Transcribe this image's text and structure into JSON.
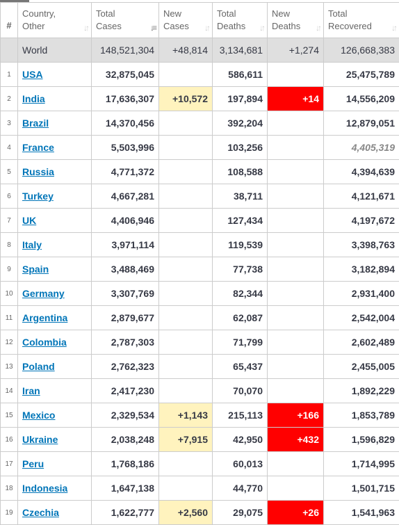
{
  "headers": {
    "num": "#",
    "country": "Country,\nOther",
    "total_cases": "Total\nCases",
    "new_cases": "New\nCases",
    "total_deaths": "Total\nDeaths",
    "new_deaths": "New\nDeaths",
    "total_recovered": "Total\nRecovered"
  },
  "world": {
    "name": "World",
    "total_cases": "148,521,304",
    "new_cases": "+48,814",
    "total_deaths": "3,134,681",
    "new_deaths": "+1,274",
    "total_recovered": "126,668,383"
  },
  "rows": [
    {
      "num": "1",
      "country": "USA",
      "total_cases": "32,875,045",
      "new_cases": "",
      "total_deaths": "586,611",
      "new_deaths": "",
      "total_recovered": "25,475,789"
    },
    {
      "num": "2",
      "country": "India",
      "total_cases": "17,636,307",
      "new_cases": "+10,572",
      "total_deaths": "197,894",
      "new_deaths": "+14",
      "total_recovered": "14,556,209"
    },
    {
      "num": "3",
      "country": "Brazil",
      "total_cases": "14,370,456",
      "new_cases": "",
      "total_deaths": "392,204",
      "new_deaths": "",
      "total_recovered": "12,879,051"
    },
    {
      "num": "4",
      "country": "France",
      "total_cases": "5,503,996",
      "new_cases": "",
      "total_deaths": "103,256",
      "new_deaths": "",
      "total_recovered": "4,405,319",
      "recovered_estimated": true
    },
    {
      "num": "5",
      "country": "Russia",
      "total_cases": "4,771,372",
      "new_cases": "",
      "total_deaths": "108,588",
      "new_deaths": "",
      "total_recovered": "4,394,639"
    },
    {
      "num": "6",
      "country": "Turkey",
      "total_cases": "4,667,281",
      "new_cases": "",
      "total_deaths": "38,711",
      "new_deaths": "",
      "total_recovered": "4,121,671"
    },
    {
      "num": "7",
      "country": "UK",
      "total_cases": "4,406,946",
      "new_cases": "",
      "total_deaths": "127,434",
      "new_deaths": "",
      "total_recovered": "4,197,672"
    },
    {
      "num": "8",
      "country": "Italy",
      "total_cases": "3,971,114",
      "new_cases": "",
      "total_deaths": "119,539",
      "new_deaths": "",
      "total_recovered": "3,398,763"
    },
    {
      "num": "9",
      "country": "Spain",
      "total_cases": "3,488,469",
      "new_cases": "",
      "total_deaths": "77,738",
      "new_deaths": "",
      "total_recovered": "3,182,894"
    },
    {
      "num": "10",
      "country": "Germany",
      "total_cases": "3,307,769",
      "new_cases": "",
      "total_deaths": "82,344",
      "new_deaths": "",
      "total_recovered": "2,931,400"
    },
    {
      "num": "11",
      "country": "Argentina",
      "total_cases": "2,879,677",
      "new_cases": "",
      "total_deaths": "62,087",
      "new_deaths": "",
      "total_recovered": "2,542,004"
    },
    {
      "num": "12",
      "country": "Colombia",
      "total_cases": "2,787,303",
      "new_cases": "",
      "total_deaths": "71,799",
      "new_deaths": "",
      "total_recovered": "2,602,489"
    },
    {
      "num": "13",
      "country": "Poland",
      "total_cases": "2,762,323",
      "new_cases": "",
      "total_deaths": "65,437",
      "new_deaths": "",
      "total_recovered": "2,455,005"
    },
    {
      "num": "14",
      "country": "Iran",
      "total_cases": "2,417,230",
      "new_cases": "",
      "total_deaths": "70,070",
      "new_deaths": "",
      "total_recovered": "1,892,229"
    },
    {
      "num": "15",
      "country": "Mexico",
      "total_cases": "2,329,534",
      "new_cases": "+1,143",
      "total_deaths": "215,113",
      "new_deaths": "+166",
      "total_recovered": "1,853,789"
    },
    {
      "num": "16",
      "country": "Ukraine",
      "total_cases": "2,038,248",
      "new_cases": "+7,915",
      "total_deaths": "42,950",
      "new_deaths": "+432",
      "total_recovered": "1,596,829"
    },
    {
      "num": "17",
      "country": "Peru",
      "total_cases": "1,768,186",
      "new_cases": "",
      "total_deaths": "60,013",
      "new_deaths": "",
      "total_recovered": "1,714,995"
    },
    {
      "num": "18",
      "country": "Indonesia",
      "total_cases": "1,647,138",
      "new_cases": "",
      "total_deaths": "44,770",
      "new_deaths": "",
      "total_recovered": "1,501,715"
    },
    {
      "num": "19",
      "country": "Czechia",
      "total_cases": "1,622,777",
      "new_cases": "+2,560",
      "total_deaths": "29,075",
      "new_deaths": "+26",
      "total_recovered": "1,541,963"
    }
  ],
  "colors": {
    "new_cases_highlight": "#fff3be",
    "new_deaths_highlight": "#ff0000",
    "link": "#0075b8",
    "world_row_bg": "#dfdfdf"
  },
  "icons": {
    "sort": "sort-updown-icon",
    "sort_active": "sort-desc-icon"
  }
}
